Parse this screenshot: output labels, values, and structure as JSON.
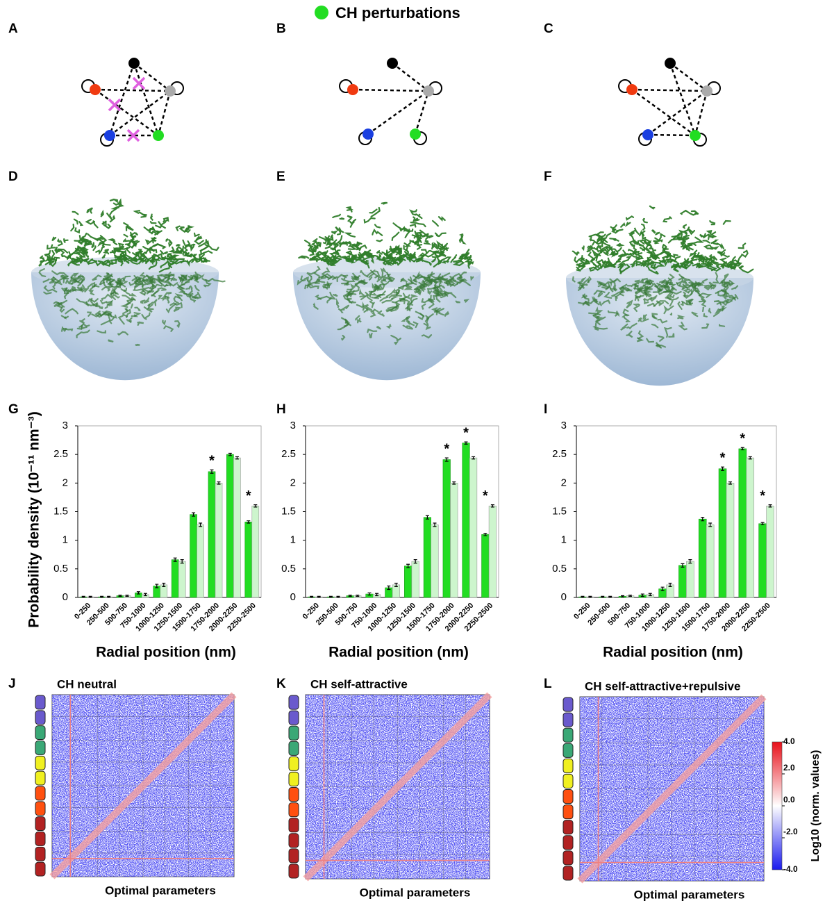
{
  "panel_labels": [
    "A",
    "B",
    "C",
    "D",
    "E",
    "F",
    "G",
    "H",
    "I",
    "J",
    "K",
    "L"
  ],
  "heatmaps": [
    {
      "title": "CH neutral",
      "x_label": "Optimal parameters"
    },
    {
      "title": "CH self-attractive",
      "x_label": "Optimal parameters"
    },
    {
      "title": "CH self-attractive+repulsive",
      "x_label": "Optimal parameters"
    }
  ],
  "colorbar": {
    "label": "Log10 (norm. values)",
    "lim": [
      -4,
      4
    ],
    "ticks": [
      {
        "value": 4,
        "label": "4.0"
      },
      {
        "value": 2,
        "label": "2.0"
      },
      {
        "value": 0,
        "label": "0.0"
      },
      {
        "value": -2,
        "label": "-2.0"
      },
      {
        "value": -4,
        "label": "-4.0"
      }
    ]
  },
  "chart_data": [
    {
      "type": "bar",
      "categories": [
        "0-250",
        "250-500",
        "500-750",
        "750-1000",
        "1000-1250",
        "1250-1500",
        "1500-1750",
        "1750-2000",
        "2000-2250",
        "2250-2500"
      ],
      "series": [
        {
          "name": "CH perturbations",
          "color": "#22dd22",
          "values": [
            0.01,
            0.01,
            0.03,
            0.08,
            0.2,
            0.66,
            1.45,
            2.2,
            2.5,
            1.32
          ],
          "errors": [
            0.01,
            0.01,
            0.01,
            0.02,
            0.03,
            0.03,
            0.03,
            0.03,
            0.02,
            0.02
          ]
        },
        {
          "color": "#cdf5cd",
          "values": [
            0.01,
            0.01,
            0.03,
            0.05,
            0.22,
            0.63,
            1.27,
            2.0,
            2.44,
            1.6
          ],
          "errors": [
            0.01,
            0.01,
            0.01,
            0.02,
            0.03,
            0.03,
            0.03,
            0.02,
            0.02,
            0.02
          ]
        }
      ],
      "ylim": [
        0,
        3
      ],
      "yticks": [
        0,
        0.5,
        1,
        1.5,
        2,
        2.5,
        3
      ],
      "x_label": "Radial position (nm)",
      "y_label": "Probability density (10⁻¹¹ nm⁻³)",
      "annotations": [
        {
          "text": "*",
          "category": "1750-2000"
        },
        {
          "text": "*",
          "category": "2250-2500"
        }
      ]
    },
    {
      "type": "bar",
      "categories": [
        "0-250",
        "250-500",
        "500-750",
        "750-1000",
        "1000-1250",
        "1250-1500",
        "1500-1750",
        "1750-2000",
        "2000-2250",
        "2250-2500"
      ],
      "series": [
        {
          "color": "#22dd22",
          "values": [
            0.01,
            0.01,
            0.03,
            0.06,
            0.17,
            0.55,
            1.4,
            2.41,
            2.7,
            1.1
          ],
          "errors": [
            0.01,
            0.01,
            0.01,
            0.02,
            0.03,
            0.03,
            0.03,
            0.03,
            0.02,
            0.02
          ]
        },
        {
          "color": "#cdf5cd",
          "values": [
            0.01,
            0.01,
            0.03,
            0.05,
            0.22,
            0.63,
            1.27,
            2.0,
            2.44,
            1.6
          ],
          "errors": [
            0.01,
            0.01,
            0.01,
            0.02,
            0.03,
            0.03,
            0.03,
            0.02,
            0.02,
            0.02
          ]
        }
      ],
      "ylim": [
        0,
        3
      ],
      "yticks": [
        0,
        0.5,
        1,
        1.5,
        2,
        2.5,
        3
      ],
      "x_label": "Radial position (nm)",
      "annotations": [
        {
          "text": "*",
          "category": "1750-2000"
        },
        {
          "text": "*",
          "category": "2000-2250"
        },
        {
          "text": "*",
          "category": "2250-2500"
        }
      ]
    },
    {
      "type": "bar",
      "categories": [
        "0-250",
        "250-500",
        "500-750",
        "750-1000",
        "1000-1250",
        "1250-1500",
        "1500-1750",
        "1750-2000",
        "2000-2250",
        "2250-2500"
      ],
      "series": [
        {
          "color": "#22dd22",
          "values": [
            0.01,
            0.01,
            0.02,
            0.04,
            0.15,
            0.56,
            1.37,
            2.25,
            2.6,
            1.29
          ],
          "errors": [
            0.01,
            0.01,
            0.01,
            0.02,
            0.03,
            0.03,
            0.03,
            0.03,
            0.02,
            0.02
          ]
        },
        {
          "color": "#cdf5cd",
          "values": [
            0.01,
            0.01,
            0.03,
            0.05,
            0.22,
            0.63,
            1.27,
            2.0,
            2.44,
            1.6
          ],
          "errors": [
            0.01,
            0.01,
            0.01,
            0.02,
            0.03,
            0.03,
            0.03,
            0.02,
            0.02,
            0.02
          ]
        }
      ],
      "ylim": [
        0,
        3
      ],
      "yticks": [
        0,
        0.5,
        1,
        1.5,
        2,
        2.5,
        3
      ],
      "x_label": "Radial position (nm)",
      "annotations": [
        {
          "text": "*",
          "category": "1750-2000"
        },
        {
          "text": "*",
          "category": "2000-2250"
        },
        {
          "text": "*",
          "category": "2250-2500"
        }
      ]
    }
  ]
}
